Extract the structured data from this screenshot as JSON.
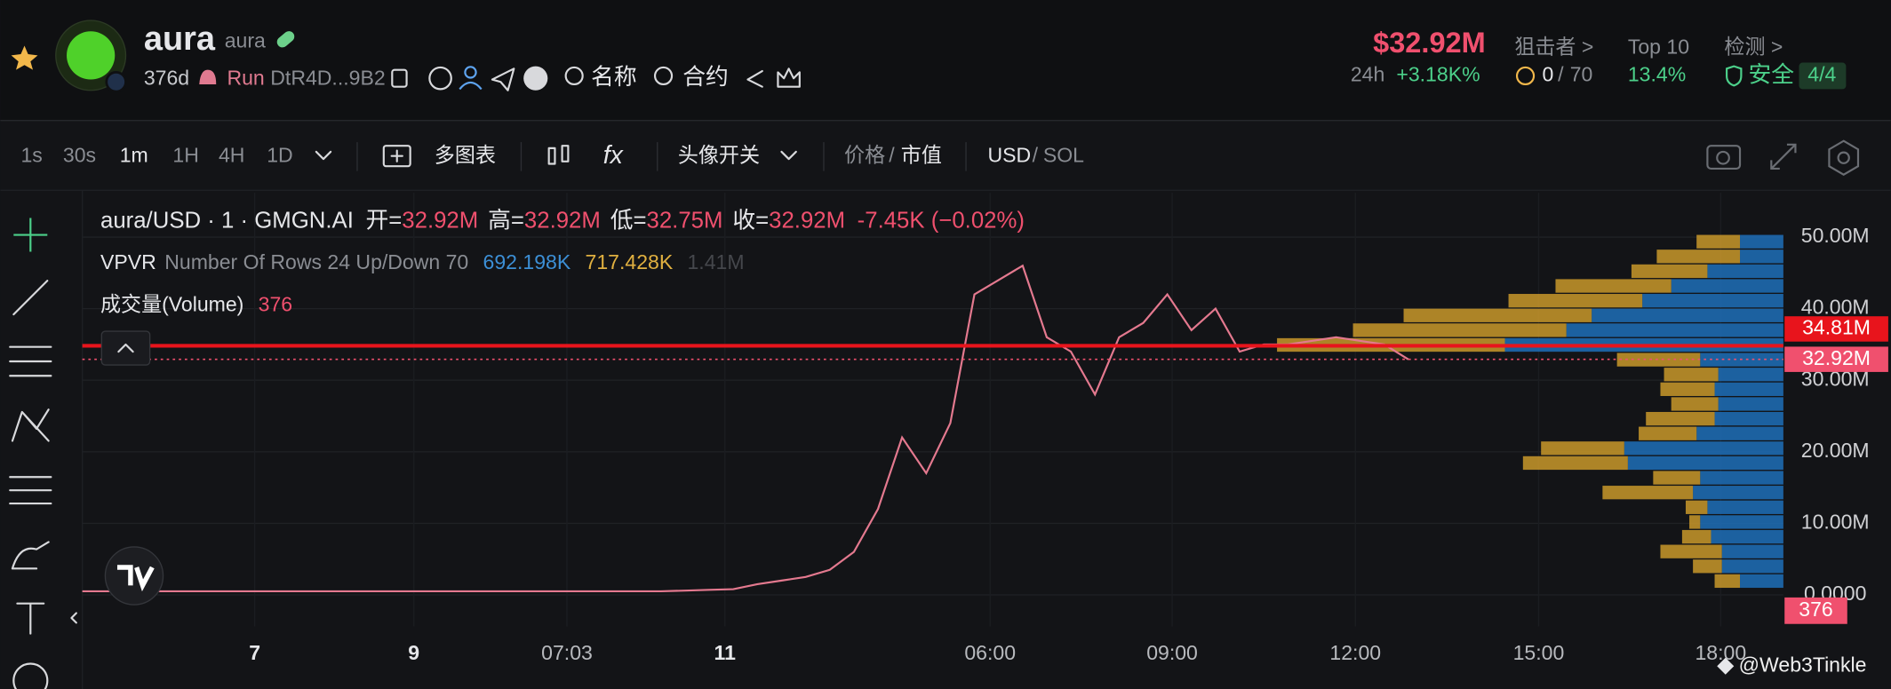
{
  "header": {
    "name": "aura",
    "ticker": "aura",
    "age": "376d",
    "launchpad": "Run",
    "address": "DtR4D...9B2",
    "search_name": "名称",
    "search_contract": "合约",
    "market_cap": "$32.92M",
    "change_period": "24h",
    "change": "+3.18K%",
    "snipers_label": "狙击者 >",
    "snipers_count": "0",
    "snipers_sep": "/",
    "snipers_total": "70",
    "top10_label": "Top 10",
    "top10_share": "13.4%",
    "audit_label": "检测 >",
    "audit_status": "安全",
    "audit_score": "4/4"
  },
  "toolbar": {
    "intervals": [
      "1s",
      "30s",
      "1m",
      "1H",
      "4H",
      "1D"
    ],
    "multi_chart": "多图表",
    "indicators": "fx",
    "avatar_toggle": "头像开关",
    "price": "价格",
    "price_sep": "/",
    "market_value": "市值",
    "currency": "USD",
    "currency_sep": "/",
    "alt_currency": "SOL"
  },
  "legend": {
    "symbol": "aura/USD · 1 · GMGN.AI",
    "open_label": "开=",
    "open": "32.92M",
    "high_label": "高=",
    "high": "32.92M",
    "low_label": "低=",
    "low": "32.75M",
    "close_label": "收=",
    "close": "32.92M",
    "change": "-7.45K (−0.02%)",
    "vpvr_label": "VPVR",
    "vpvr_settings": "Number Of Rows 24 Up/Down 70",
    "vpvr_up": "692.198K",
    "vpvr_down": "717.428K",
    "vpvr_total": "1.41M",
    "volume_label": "成交量(Volume)",
    "volume": "376"
  },
  "chart_data": {
    "type": "line",
    "color": "#e4798f",
    "values": [
      0.5,
      0.5,
      0.5,
      0.5,
      0.5,
      0.5,
      0.5,
      0.5,
      0.5,
      0.5,
      0.5,
      0.5,
      0.5,
      0.5,
      0.5,
      0.5,
      0.5,
      0.5,
      0.5,
      0.5,
      0.5,
      0.5,
      0.5,
      0.5,
      0.5,
      0.6,
      0.7,
      0.8,
      1.5,
      2,
      2.5,
      3.5,
      6,
      12,
      22,
      17,
      24,
      42,
      44,
      46,
      36,
      34,
      28,
      36,
      38,
      42,
      37,
      40,
      34,
      35,
      35,
      35.5,
      36,
      35.5,
      35,
      32.9
    ],
    "ylim": [
      -4.4,
      56.2
    ],
    "yticks": [
      {
        "value": 0,
        "label": "0.0000"
      },
      {
        "value": 10,
        "label": "10.00M"
      },
      {
        "value": 20,
        "label": "20.00M"
      },
      {
        "value": 30,
        "label": "30.00M"
      },
      {
        "value": 40,
        "label": "40.00M"
      },
      {
        "value": 50,
        "label": "50.00M"
      }
    ],
    "grid": true,
    "time_labels": [
      "7",
      "9",
      "07:03",
      "11",
      "06:00",
      "09:00",
      "12:00",
      "15:00",
      "18:00"
    ],
    "price_lines": [
      {
        "value": 34.81,
        "label": "34.81M",
        "color": "#e8141c"
      },
      {
        "value": 32.92,
        "label": "32.92M",
        "color": "#f0506e"
      }
    ],
    "volume_tag": "376",
    "vpvr": {
      "up_color": "#1f6fb8",
      "down_color": "#c9982a",
      "up": [
        12,
        12,
        21,
        31,
        39,
        53,
        60,
        77,
        23,
        18,
        19,
        18,
        19,
        24,
        44,
        43,
        23,
        25,
        21,
        23,
        20,
        17,
        17,
        12
      ],
      "down": [
        12,
        23,
        21,
        32,
        37,
        52,
        59,
        63,
        23,
        15,
        15,
        13,
        19,
        16,
        23,
        29,
        13,
        25,
        6,
        3,
        8,
        17,
        8,
        7
      ]
    }
  },
  "watermark": "@Web3Tinkle"
}
